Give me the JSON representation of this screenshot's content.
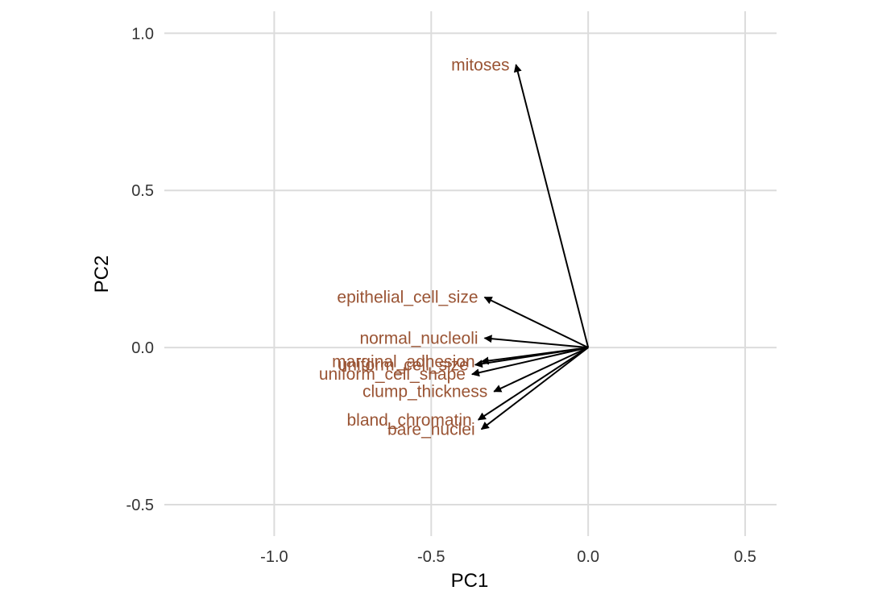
{
  "chart_data": {
    "type": "biplot-loadings",
    "xlabel": "PC1",
    "ylabel": "PC2",
    "xlim": [
      -1.35,
      0.6
    ],
    "ylim": [
      -0.6,
      1.07
    ],
    "x_ticks": [
      -1.0,
      -0.5,
      0.0,
      0.5
    ],
    "x_tick_labels": [
      "-1.0",
      "-0.5",
      "0.0",
      "0.5"
    ],
    "y_ticks": [
      -0.5,
      0.0,
      0.5,
      1.0
    ],
    "y_tick_labels": [
      "-0.5",
      "0.0",
      "0.5",
      "1.0"
    ],
    "grid": true,
    "label_color": "#9a5434",
    "arrow_color": "#000000",
    "origin": [
      0,
      0
    ],
    "vectors": [
      {
        "name": "mitoses",
        "x": -0.23,
        "y": 0.9
      },
      {
        "name": "epithelial_cell_size",
        "x": -0.33,
        "y": 0.16
      },
      {
        "name": "normal_nucleoli",
        "x": -0.33,
        "y": 0.03
      },
      {
        "name": "uniform_cell_size",
        "x": -0.36,
        "y": -0.055
      },
      {
        "name": "marginal_adhesion",
        "x": -0.34,
        "y": -0.045
      },
      {
        "name": "uniform_cell_shape",
        "x": -0.37,
        "y": -0.085
      },
      {
        "name": "clump_thickness",
        "x": -0.3,
        "y": -0.14
      },
      {
        "name": "bland_chromatin",
        "x": -0.35,
        "y": -0.23
      },
      {
        "name": "bare_nuclei",
        "x": -0.34,
        "y": -0.26
      }
    ]
  }
}
